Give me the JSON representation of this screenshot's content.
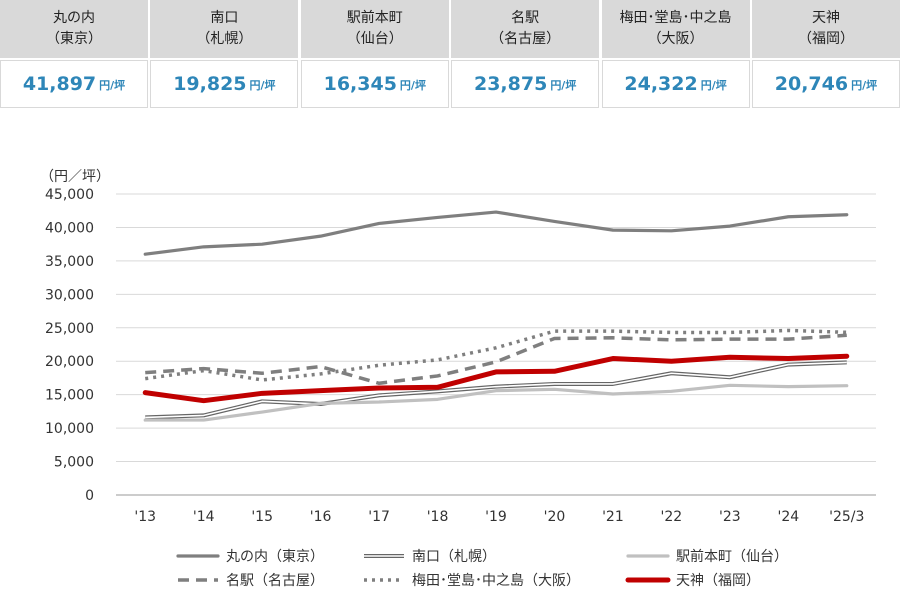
{
  "summary": [
    {
      "name": "丸の内",
      "city": "（東京）",
      "value": "41,897",
      "unit": "円/坪"
    },
    {
      "name": "南口",
      "city": "（札幌）",
      "value": "19,825",
      "unit": "円/坪"
    },
    {
      "name": "駅前本町",
      "city": "（仙台）",
      "value": "16,345",
      "unit": "円/坪"
    },
    {
      "name": "名駅",
      "city": "（名古屋）",
      "value": "23,875",
      "unit": "円/坪"
    },
    {
      "name": "梅田･堂島･中之島",
      "city": "（大阪）",
      "value": "24,322",
      "unit": "円/坪"
    },
    {
      "name": "天神",
      "city": "（福岡）",
      "value": "20,746",
      "unit": "円/坪"
    }
  ],
  "chart_data": {
    "type": "line",
    "ylabel": "（円／坪）",
    "ylim": [
      0,
      45000
    ],
    "yticks": [
      0,
      5000,
      10000,
      15000,
      20000,
      25000,
      30000,
      35000,
      40000,
      45000
    ],
    "ytick_labels": [
      "0",
      "5,000",
      "10,000",
      "15,000",
      "20,000",
      "25,000",
      "30,000",
      "35,000",
      "40,000",
      "45,000"
    ],
    "categories": [
      "'13",
      "'14",
      "'15",
      "'16",
      "'17",
      "'18",
      "'19",
      "'20",
      "'21",
      "'22",
      "'23",
      "'24",
      "'25/3"
    ],
    "grid": true,
    "legend": "bottom",
    "series": [
      {
        "name": "丸の内（東京）",
        "style": "solid",
        "color": "#7f7f7f",
        "values": [
          36000,
          37100,
          37500,
          38700,
          40600,
          41500,
          42300,
          40900,
          39600,
          39500,
          40200,
          41600,
          41897
        ]
      },
      {
        "name": "南口（札幌）",
        "style": "double",
        "color": "#666666",
        "values": [
          11600,
          11900,
          14000,
          13600,
          14900,
          15500,
          16200,
          16600,
          16600,
          18200,
          17600,
          19500,
          19825
        ]
      },
      {
        "name": "駅前本町（仙台）",
        "style": "solid",
        "color": "#c0c0c0",
        "values": [
          11200,
          11200,
          12400,
          13700,
          13900,
          14300,
          15600,
          15800,
          15100,
          15500,
          16400,
          16200,
          16345
        ]
      },
      {
        "name": "名駅（名古屋）",
        "style": "dashed",
        "color": "#7f7f7f",
        "values": [
          18300,
          18900,
          18200,
          19200,
          16700,
          17800,
          19900,
          23400,
          23500,
          23200,
          23300,
          23300,
          23875
        ]
      },
      {
        "name": "梅田･堂島･中之島（大阪）",
        "style": "dotted",
        "color": "#7f7f7f",
        "values": [
          17400,
          18600,
          17200,
          18100,
          19400,
          20200,
          22000,
          24500,
          24500,
          24300,
          24300,
          24600,
          24322
        ]
      },
      {
        "name": "天神（福岡）",
        "style": "solid",
        "color": "#c00000",
        "values": [
          15300,
          14100,
          15200,
          15600,
          16000,
          16100,
          18400,
          18500,
          20400,
          20000,
          20600,
          20400,
          20746
        ]
      }
    ]
  }
}
